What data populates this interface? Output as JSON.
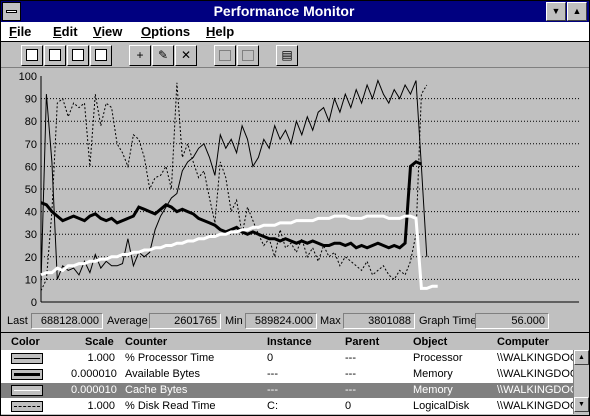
{
  "window": {
    "title": "Performance Monitor"
  },
  "menu": [
    "File",
    "Edit",
    "View",
    "Options",
    "Help"
  ],
  "title_buttons": {
    "minimize": "▼",
    "maximize": "▲"
  },
  "toolbar": {
    "buttons": [
      {
        "name": "view-chart",
        "glyph": "",
        "enabled": true
      },
      {
        "name": "view-alerts",
        "glyph": "",
        "enabled": true
      },
      {
        "name": "view-log",
        "glyph": "",
        "enabled": true
      },
      {
        "name": "view-report",
        "glyph": "",
        "enabled": true
      },
      {
        "name": "add-counter",
        "glyph": "+",
        "enabled": true
      },
      {
        "name": "modify-selection",
        "glyph": "✎",
        "enabled": true
      },
      {
        "name": "delete-selection",
        "glyph": "✕",
        "enabled": true
      },
      {
        "name": "update-now",
        "glyph": "",
        "enabled": false
      },
      {
        "name": "place-bookmark",
        "glyph": "",
        "enabled": false
      },
      {
        "name": "options",
        "glyph": "▤",
        "enabled": true
      }
    ]
  },
  "chart_data": {
    "type": "line",
    "ylim": [
      0,
      100
    ],
    "yticks": [
      "100",
      "90",
      "80",
      "70",
      "60",
      "50",
      "40",
      "30",
      "20",
      "10",
      "0"
    ],
    "grid": true,
    "samples": 100,
    "colors": {
      "white": "#ffffff",
      "black": "#000000"
    },
    "series": [
      {
        "style": "thin-black",
        "values": [
          8,
          92,
          62,
          10,
          16,
          14,
          15,
          12,
          18,
          13,
          21,
          15,
          18,
          16,
          16,
          17,
          28,
          16,
          22,
          20,
          22,
          32,
          38,
          42,
          46,
          48,
          58,
          62,
          64,
          68,
          70,
          64,
          56,
          74,
          68,
          72,
          66,
          78,
          72,
          60,
          64,
          72,
          68,
          78,
          72,
          76,
          70,
          80,
          74,
          82,
          76,
          84,
          86,
          80,
          90,
          84,
          92,
          86,
          94,
          88,
          96,
          90,
          98,
          92,
          88,
          94,
          90,
          96,
          92,
          98,
          60,
          20
        ]
      },
      {
        "style": "thick-black",
        "values": [
          44,
          43,
          40,
          38,
          36,
          37,
          38,
          37,
          36,
          38,
          39,
          37,
          36,
          37,
          35,
          36,
          37,
          38,
          42,
          41,
          40,
          39,
          41,
          43,
          42,
          40,
          41,
          40,
          39,
          37,
          36,
          35,
          34,
          32,
          31,
          32,
          33,
          31,
          30,
          31,
          30,
          29,
          28,
          28,
          27,
          28,
          27,
          26,
          27,
          26,
          27,
          26,
          25,
          25,
          26,
          26,
          25,
          26,
          24,
          25,
          24,
          25,
          26,
          25,
          24,
          25,
          24,
          26,
          60,
          62,
          61
        ]
      },
      {
        "style": "white",
        "values": [
          12,
          13,
          13,
          15,
          14,
          16,
          16,
          17,
          17,
          18,
          18,
          19,
          19,
          20,
          20,
          21,
          21,
          22,
          22,
          23,
          23,
          24,
          24,
          25,
          25,
          26,
          26,
          27,
          27,
          28,
          28,
          29,
          29,
          30,
          30,
          31,
          31,
          32,
          32,
          33,
          33,
          34,
          34,
          34,
          35,
          35,
          35,
          36,
          36,
          36,
          36,
          37,
          37,
          37,
          38,
          38,
          38,
          37,
          37,
          37,
          38,
          38,
          38,
          38,
          37,
          37,
          37,
          38,
          38,
          37,
          6,
          6,
          7,
          7
        ]
      },
      {
        "style": "dotted",
        "values": [
          5,
          10,
          40,
          88,
          90,
          82,
          88,
          86,
          88,
          60,
          92,
          78,
          88,
          86,
          70,
          66,
          60,
          74,
          72,
          64,
          50,
          55,
          56,
          60,
          50,
          97,
          64,
          70,
          62,
          55,
          58,
          46,
          35,
          62,
          55,
          40,
          45,
          30,
          42,
          36,
          30,
          25,
          28,
          20,
          32,
          24,
          26,
          22,
          28,
          20,
          24,
          18,
          25,
          20,
          22,
          16,
          20,
          18,
          16,
          14,
          18,
          12,
          14,
          16,
          12,
          10,
          14,
          12,
          18,
          30,
          92,
          96
        ]
      }
    ]
  },
  "values_bar": {
    "last_label": "Last",
    "last": "688128.000",
    "average_label": "Average",
    "average": "2601765",
    "min_label": "Min",
    "min": "589824.000",
    "max_label": "Max",
    "max": "3801088",
    "graph_time_label": "Graph Time",
    "graph_time": "56.000"
  },
  "legend": {
    "headers": {
      "color": "Color",
      "scale": "Scale",
      "counter": "Counter",
      "instance": "Instance",
      "parent": "Parent",
      "object": "Object",
      "computer": "Computer"
    },
    "rows": [
      {
        "style": "thin-black",
        "scale": "1.000",
        "counter": "% Processor Time",
        "instance": "0",
        "parent": "---",
        "object": "Processor",
        "computer": "\\\\WALKINGDOG"
      },
      {
        "style": "thick-black",
        "scale": "0.000010",
        "counter": "Available Bytes",
        "instance": "---",
        "parent": "---",
        "object": "Memory",
        "computer": "\\\\WALKINGDOG"
      },
      {
        "style": "white",
        "scale": "0.000010",
        "counter": "Cache Bytes",
        "instance": "---",
        "parent": "---",
        "object": "Memory",
        "computer": "\\\\WALKINGDOG",
        "selected": true
      },
      {
        "style": "dotted",
        "scale": "1.000",
        "counter": "% Disk Read Time",
        "instance": "C:",
        "parent": "0",
        "object": "LogicalDisk",
        "computer": "\\\\WALKINGDOG"
      }
    ]
  },
  "scrollbar": {
    "up": "▲",
    "down": "▼"
  }
}
